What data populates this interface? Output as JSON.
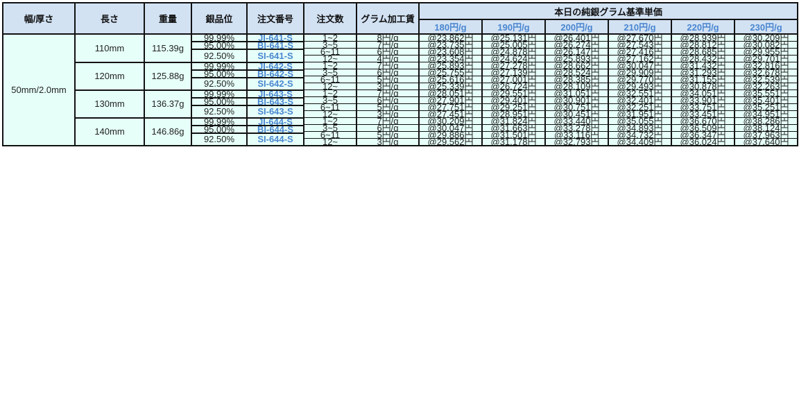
{
  "table": {
    "headers": {
      "width_thickness": "幅/厚さ",
      "length": "長さ",
      "weight": "重量",
      "purity": "銀品位",
      "order_no": "注文番号",
      "qty": "注文数",
      "fee": "グラム加工賃",
      "base_price": "本日の純銀グラム基準単価",
      "price_columns": [
        "180円/g",
        "190円/g",
        "200円/g",
        "210円/g",
        "220円/g",
        "230円/g"
      ]
    },
    "width_thickness": "50mm/2.0mm",
    "groups": [
      {
        "length": "110mm",
        "weight": "115.39g",
        "grades": [
          {
            "purity": "99.99%",
            "order_no": "JI-641-S"
          },
          {
            "purity": "95.00%",
            "order_no": "BI-641-S"
          },
          {
            "purity": "92.50%",
            "order_no": "SI-641-S"
          }
        ],
        "tiers": [
          {
            "qty": "1~2",
            "fee": "8円/g",
            "prices": [
              "@23,862円",
              "@25,131円",
              "@26,401円",
              "@27,670円",
              "@28,939円",
              "@30,209円"
            ]
          },
          {
            "qty": "3~5",
            "fee": "7円/g",
            "prices": [
              "@23,735円",
              "@25,005円",
              "@26,274円",
              "@27,543円",
              "@28,812円",
              "@30,082円"
            ]
          },
          {
            "qty": "6~11",
            "fee": "6円/g",
            "prices": [
              "@23,608円",
              "@24,878円",
              "@26,147円",
              "@27,416円",
              "@28,685円",
              "@29,955円"
            ]
          },
          {
            "qty": "12~",
            "fee": "4円/g",
            "prices": [
              "@23,354円",
              "@24,624円",
              "@25,893円",
              "@27,162円",
              "@28,432円",
              "@29,701円"
            ]
          }
        ]
      },
      {
        "length": "120mm",
        "weight": "125.88g",
        "grades": [
          {
            "purity": "99.99%",
            "order_no": "JI-642-S"
          },
          {
            "purity": "95.00%",
            "order_no": "BI-642-S"
          },
          {
            "purity": "92.50%",
            "order_no": "SI-642-S"
          }
        ],
        "tiers": [
          {
            "qty": "1~2",
            "fee": "7円/g",
            "prices": [
              "@25,893円",
              "@27,278円",
              "@28,662円",
              "@30,047円",
              "@31,432円",
              "@32,816円"
            ]
          },
          {
            "qty": "3~5",
            "fee": "6円/g",
            "prices": [
              "@25,755円",
              "@27,139円",
              "@28,524円",
              "@29,909円",
              "@31,293円",
              "@32,678円"
            ]
          },
          {
            "qty": "6~11",
            "fee": "5円/g",
            "prices": [
              "@25,616円",
              "@27,001円",
              "@28,385円",
              "@29,770円",
              "@31,155円",
              "@32,539円"
            ]
          },
          {
            "qty": "12~",
            "fee": "3円/g",
            "prices": [
              "@25,339円",
              "@26,724円",
              "@28,109円",
              "@29,493円",
              "@30,878円",
              "@32,263円"
            ]
          }
        ]
      },
      {
        "length": "130mm",
        "weight": "136.37g",
        "grades": [
          {
            "purity": "99.99%",
            "order_no": "JI-643-S"
          },
          {
            "purity": "95.00%",
            "order_no": "BI-643-S"
          },
          {
            "purity": "92.50%",
            "order_no": "SI-643-S"
          }
        ],
        "tiers": [
          {
            "qty": "1~2",
            "fee": "7円/g",
            "prices": [
              "@28,051円",
              "@29,551円",
              "@31,051円",
              "@32,551円",
              "@34,051円",
              "@35,551円"
            ]
          },
          {
            "qty": "3~5",
            "fee": "6円/g",
            "prices": [
              "@27,901円",
              "@29,401円",
              "@30,901円",
              "@32,401円",
              "@33,901円",
              "@35,401円"
            ]
          },
          {
            "qty": "6~11",
            "fee": "5円/g",
            "prices": [
              "@27,751円",
              "@29,251円",
              "@30,751円",
              "@32,251円",
              "@33,751円",
              "@35,251円"
            ]
          },
          {
            "qty": "12~",
            "fee": "3円/g",
            "prices": [
              "@27,451円",
              "@28,951円",
              "@30,451円",
              "@31,951円",
              "@33,451円",
              "@34,951円"
            ]
          }
        ]
      },
      {
        "length": "140mm",
        "weight": "146.86g",
        "grades": [
          {
            "purity": "99.99%",
            "order_no": "JI-644-S"
          },
          {
            "purity": "95.00%",
            "order_no": "BI-644-S"
          },
          {
            "purity": "92.50%",
            "order_no": "SI-644-S"
          }
        ],
        "tiers": [
          {
            "qty": "1~2",
            "fee": "7円/g",
            "prices": [
              "@30,209円",
              "@31,824円",
              "@33,440円",
              "@35,055円",
              "@36,670円",
              "@38,286円"
            ]
          },
          {
            "qty": "3~5",
            "fee": "6円/g",
            "prices": [
              "@30,047円",
              "@31,663円",
              "@33,278円",
              "@34,893円",
              "@36,509円",
              "@38,124円"
            ]
          },
          {
            "qty": "6~11",
            "fee": "5円/g",
            "prices": [
              "@29,886円",
              "@31,501円",
              "@33,116円",
              "@34,732円",
              "@36,347円",
              "@37,963円"
            ]
          },
          {
            "qty": "12~",
            "fee": "3円/g",
            "prices": [
              "@29,562円",
              "@31,178円",
              "@32,793円",
              "@34,409円",
              "@36,024円",
              "@37,640円"
            ]
          }
        ]
      }
    ]
  }
}
